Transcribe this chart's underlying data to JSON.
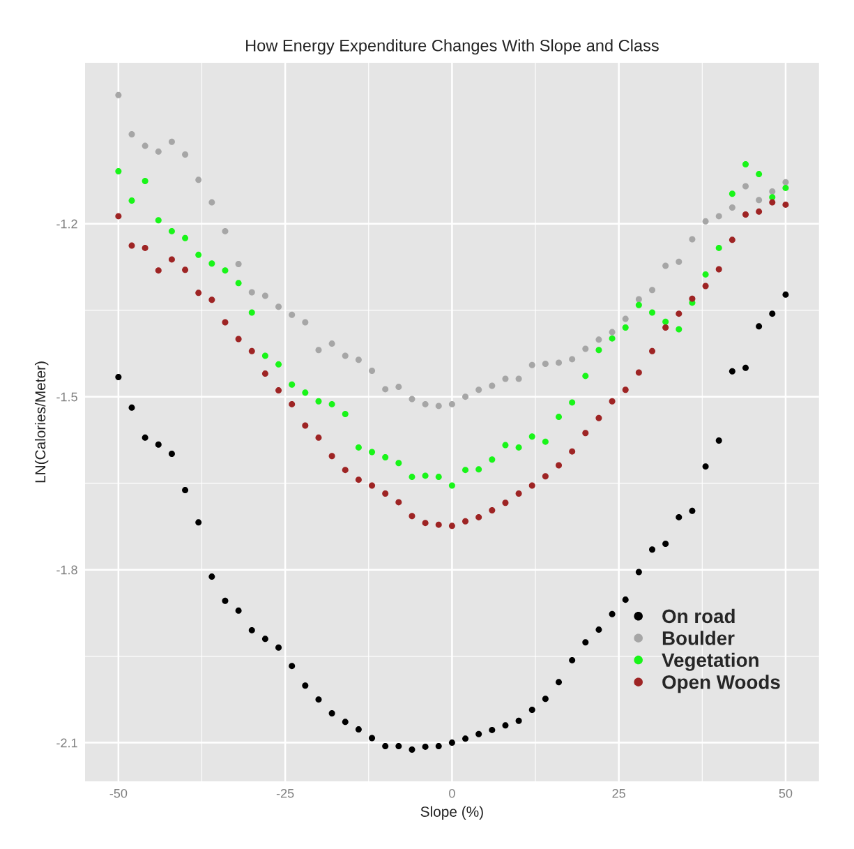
{
  "chart_data": {
    "type": "scatter",
    "title": "How Energy Expenditure Changes With Slope and Class",
    "xlabel": "Slope (%)",
    "ylabel": "LN(Calories/Meter)",
    "x": [
      -50,
      -48,
      -46,
      -44,
      -42,
      -40,
      -38,
      -36,
      -34,
      -32,
      -30,
      -28,
      -26,
      -24,
      -22,
      -20,
      -18,
      -16,
      -14,
      -12,
      -10,
      -8,
      -6,
      -4,
      -2,
      0,
      2,
      4,
      6,
      8,
      10,
      12,
      14,
      16,
      18,
      20,
      22,
      24,
      26,
      28,
      30,
      32,
      34,
      36,
      38,
      40,
      42,
      44,
      46,
      48,
      50
    ],
    "series": [
      {
        "name": "On road",
        "color": "#000000",
        "values": [
          -1.466,
          -1.519,
          -1.571,
          -1.583,
          -1.599,
          -1.662,
          -1.718,
          -1.812,
          -1.854,
          -1.871,
          -1.905,
          -1.92,
          -1.935,
          -1.967,
          -2.001,
          -2.025,
          -2.049,
          -2.064,
          -2.077,
          -2.092,
          -2.106,
          -2.106,
          -2.112,
          -2.107,
          -2.106,
          -2.1,
          -2.093,
          -2.085,
          -2.078,
          -2.07,
          -2.062,
          -2.043,
          -2.024,
          -1.995,
          -1.957,
          -1.926,
          -1.904,
          -1.877,
          -1.852,
          -1.804,
          -1.765,
          -1.755,
          -1.709,
          -1.698,
          -1.621,
          -1.576,
          -1.456,
          -1.45,
          -1.378,
          -1.356,
          -1.323
        ]
      },
      {
        "name": "Boulder",
        "color": "#a6a6a6",
        "values": [
          -0.977,
          -1.045,
          -1.065,
          -1.075,
          -1.058,
          -1.08,
          -1.124,
          -1.163,
          -1.213,
          -1.27,
          -1.319,
          -1.325,
          -1.344,
          -1.358,
          -1.371,
          -1.419,
          -1.408,
          -1.429,
          -1.436,
          -1.455,
          -1.487,
          -1.483,
          -1.504,
          -1.513,
          -1.516,
          -1.513,
          -1.5,
          -1.488,
          -1.481,
          -1.469,
          -1.469,
          -1.445,
          -1.443,
          -1.441,
          -1.435,
          -1.417,
          -1.401,
          -1.388,
          -1.365,
          -1.331,
          -1.315,
          -1.273,
          -1.266,
          -1.227,
          -1.196,
          -1.187,
          -1.172,
          -1.135,
          -1.159,
          -1.144,
          -1.128
        ]
      },
      {
        "name": "Vegetation",
        "color": "#19f519",
        "values": [
          -1.109,
          -1.16,
          -1.126,
          -1.194,
          -1.213,
          -1.225,
          -1.254,
          -1.269,
          -1.281,
          -1.303,
          -1.354,
          -1.429,
          -1.444,
          -1.479,
          -1.493,
          -1.508,
          -1.513,
          -1.53,
          -1.588,
          -1.596,
          -1.605,
          -1.615,
          -1.639,
          -1.637,
          -1.639,
          -1.654,
          -1.627,
          -1.626,
          -1.609,
          -1.584,
          -1.588,
          -1.569,
          -1.578,
          -1.535,
          -1.51,
          -1.464,
          -1.419,
          -1.399,
          -1.38,
          -1.341,
          -1.354,
          -1.37,
          -1.383,
          -1.337,
          -1.288,
          -1.242,
          -1.148,
          -1.097,
          -1.114,
          -1.154,
          -1.138
        ]
      },
      {
        "name": "Open Woods",
        "color": "#9e2424",
        "values": [
          -1.187,
          -1.238,
          -1.242,
          -1.281,
          -1.262,
          -1.28,
          -1.32,
          -1.332,
          -1.371,
          -1.4,
          -1.421,
          -1.46,
          -1.489,
          -1.513,
          -1.55,
          -1.571,
          -1.603,
          -1.627,
          -1.644,
          -1.654,
          -1.668,
          -1.683,
          -1.707,
          -1.719,
          -1.722,
          -1.724,
          -1.716,
          -1.709,
          -1.697,
          -1.684,
          -1.668,
          -1.654,
          -1.638,
          -1.619,
          -1.595,
          -1.563,
          -1.537,
          -1.508,
          -1.488,
          -1.458,
          -1.421,
          -1.38,
          -1.356,
          -1.33,
          -1.308,
          -1.279,
          -1.228,
          -1.184,
          -1.179,
          -1.163,
          -1.167
        ]
      }
    ],
    "xlim": [
      -55,
      55
    ],
    "ylim": [
      -2.167,
      -0.921
    ],
    "xticks": [
      -50,
      -25,
      0,
      25,
      50
    ],
    "yticks": [
      -2.1,
      -1.8,
      -1.5,
      -1.2
    ],
    "grid": true,
    "legend": "bottom right",
    "marker": "circle"
  }
}
